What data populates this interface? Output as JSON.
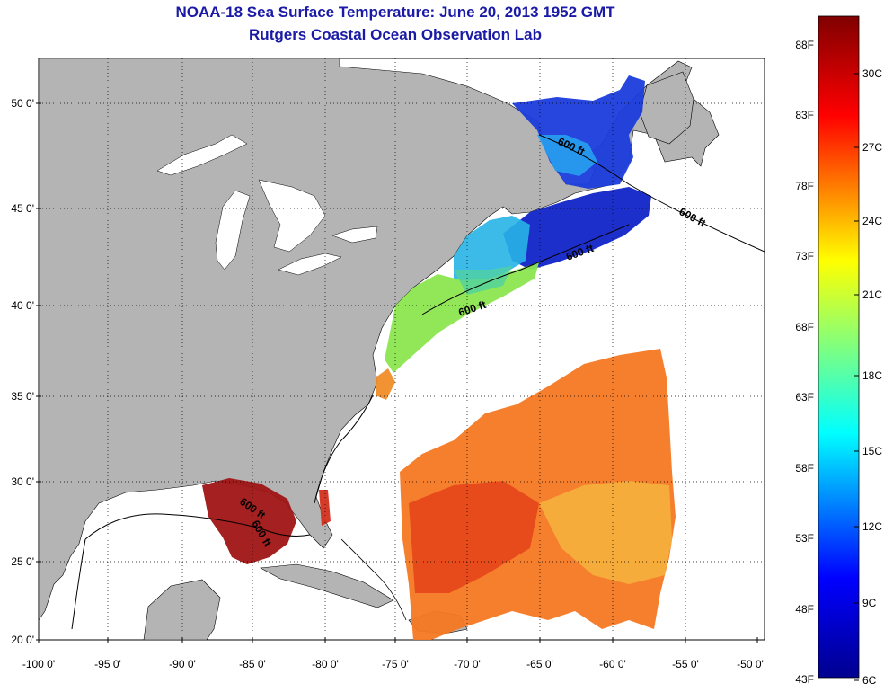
{
  "title": "NOAA-18 Sea Surface Temperature:  June 20, 2013 1952 GMT",
  "subtitle": "Rutgers Coastal Ocean Observation Lab",
  "lat_ticks": [
    "50 0'",
    "45 0'",
    "40 0'",
    "35 0'",
    "30 0'",
    "25 0'",
    "20 0'"
  ],
  "lon_ticks": [
    "-100 0'",
    "-95 0'",
    "-90 0'",
    "-85 0'",
    "-80 0'",
    "-75 0'",
    "-70 0'",
    "-65 0'",
    "-60 0'",
    "-55 0'",
    "-50 0'"
  ],
  "contour_labels": [
    "600 ft",
    "600 ft",
    "600 ft",
    "600 ft",
    "600 ft",
    "600 ft"
  ],
  "colorbar": {
    "fahrenheit": [
      "88F",
      "83F",
      "78F",
      "73F",
      "68F",
      "63F",
      "58F",
      "53F",
      "48F",
      "43F"
    ],
    "celsius": [
      "30C",
      "27C",
      "24C",
      "21C",
      "18C",
      "15C",
      "12C",
      "9C",
      "6C"
    ]
  },
  "colors": {
    "title": "#1a1aa6",
    "land": "#b4b4b4",
    "ocean": "#ffffff"
  }
}
